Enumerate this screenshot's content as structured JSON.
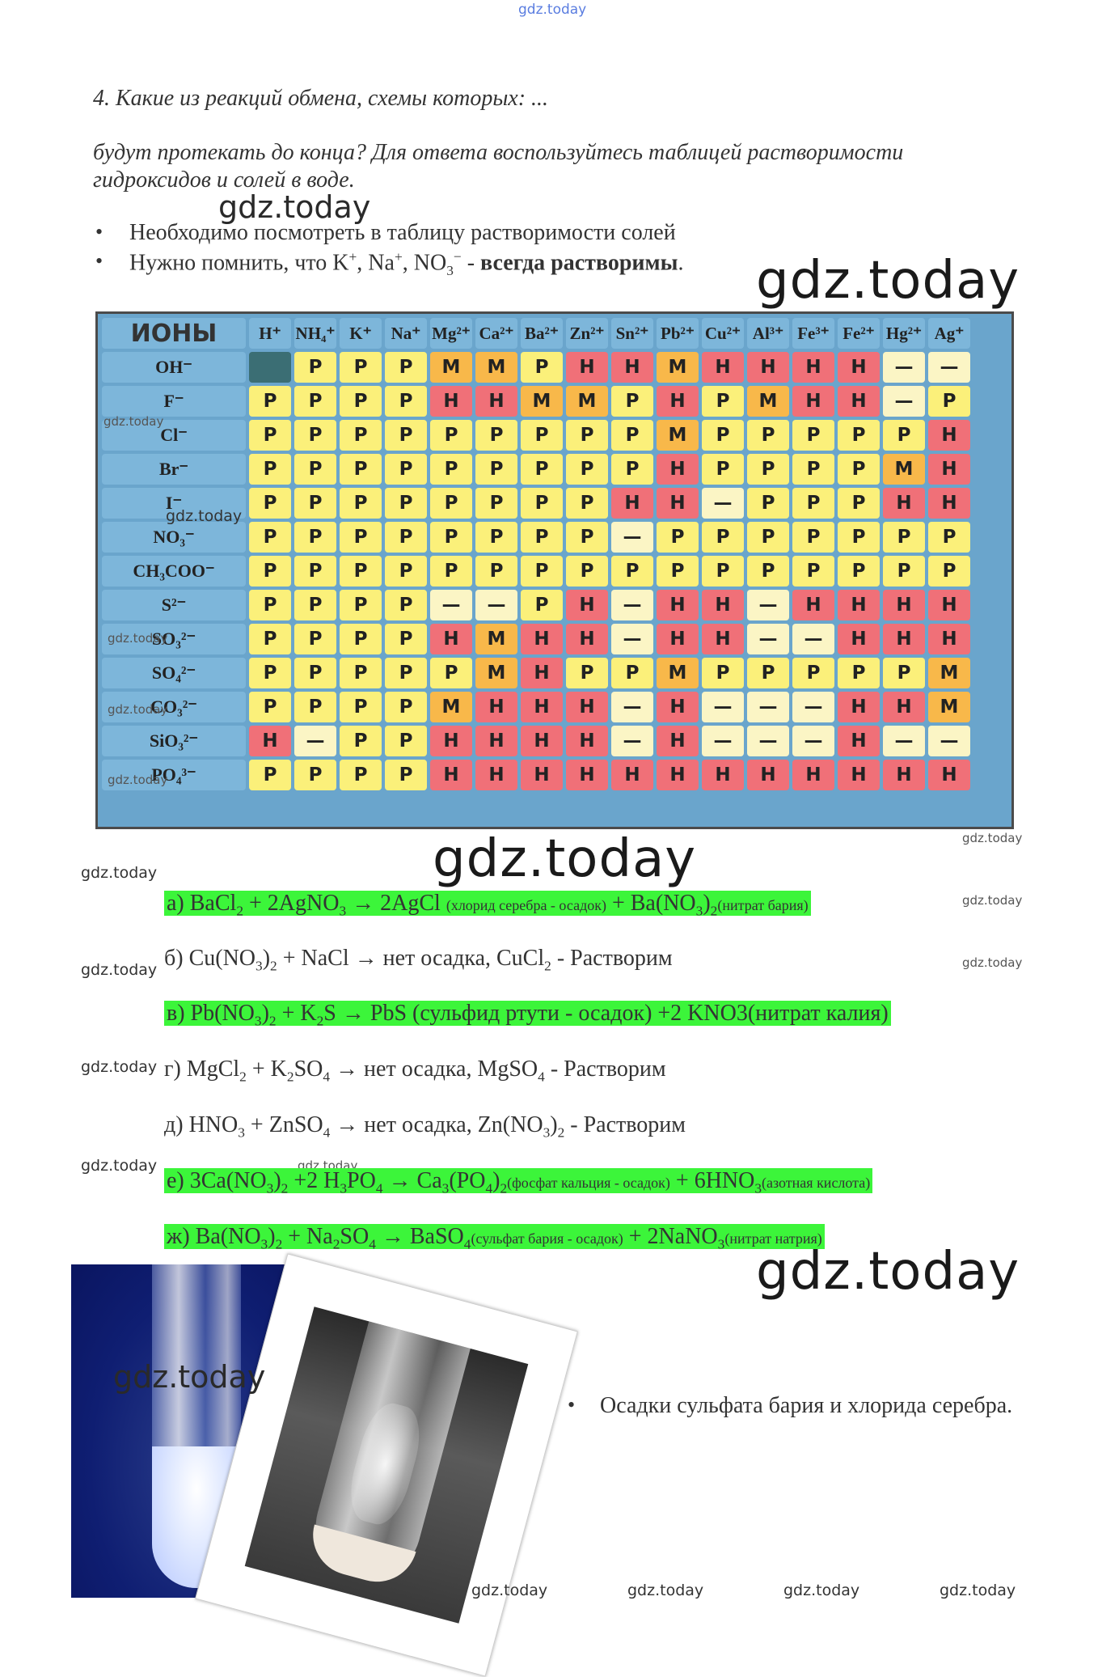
{
  "watermarks": {
    "top": "gdz.today",
    "text": "gdz.today"
  },
  "task": {
    "line1": "4. Какие из реакций обмена, схемы которых: ...",
    "line2": "будут протекать до конца? Для ответа воспользуйтесь таблицей растворимости гидроксидов и солей в воде."
  },
  "bullets": {
    "b1": "Необходимо посмотреть в таблицу растворимости солей",
    "b2_pre": "Нужно помнить, что K",
    "b2_sup1": "+",
    "b2_mid1": ", Na",
    "b2_sup2": "+",
    "b2_mid2": ", NO",
    "b2_sub": "3",
    "b2_sup3": "−",
    "b2_dash": " - ",
    "b2_bold": "всегда растворимы",
    "b2_end": "."
  },
  "table": {
    "corner": "ИОНЫ",
    "cations": [
      "H⁺",
      "NH₄⁺",
      "K⁺",
      "Na⁺",
      "Mg²⁺",
      "Ca²⁺",
      "Ba²⁺",
      "Zn²⁺",
      "Sn²⁺",
      "Pb²⁺",
      "Cu²⁺",
      "Al³⁺",
      "Fe³⁺",
      "Fe²⁺",
      "Hg²⁺",
      "Ag⁺"
    ],
    "rows": [
      {
        "anion": "OH⁻",
        "cells": [
          "",
          "Р",
          "Р",
          "Р",
          "М",
          "М",
          "Р",
          "Н",
          "Н",
          "М",
          "Н",
          "Н",
          "Н",
          "Н",
          "—",
          "—"
        ]
      },
      {
        "anion": "F⁻",
        "cells": [
          "Р",
          "Р",
          "Р",
          "Р",
          "Н",
          "Н",
          "М",
          "М",
          "Р",
          "Н",
          "Р",
          "М",
          "Н",
          "Н",
          "—",
          "Р"
        ]
      },
      {
        "anion": "Cl⁻",
        "cells": [
          "Р",
          "Р",
          "Р",
          "Р",
          "Р",
          "Р",
          "Р",
          "Р",
          "Р",
          "М",
          "Р",
          "Р",
          "Р",
          "Р",
          "Р",
          "Н"
        ]
      },
      {
        "anion": "Br⁻",
        "cells": [
          "Р",
          "Р",
          "Р",
          "Р",
          "Р",
          "Р",
          "Р",
          "Р",
          "Р",
          "Н",
          "Р",
          "Р",
          "Р",
          "Р",
          "М",
          "Н"
        ]
      },
      {
        "anion": "I⁻",
        "cells": [
          "Р",
          "Р",
          "Р",
          "Р",
          "Р",
          "Р",
          "Р",
          "Р",
          "Н",
          "Н",
          "—",
          "Р",
          "Р",
          "Р",
          "Н",
          "Н"
        ]
      },
      {
        "anion": "NO₃⁻",
        "cells": [
          "Р",
          "Р",
          "Р",
          "Р",
          "Р",
          "Р",
          "Р",
          "Р",
          "—",
          "Р",
          "Р",
          "Р",
          "Р",
          "Р",
          "Р",
          "Р"
        ]
      },
      {
        "anion": "CH₃COO⁻",
        "cells": [
          "Р",
          "Р",
          "Р",
          "Р",
          "Р",
          "Р",
          "Р",
          "Р",
          "Р",
          "Р",
          "Р",
          "Р",
          "Р",
          "Р",
          "Р",
          "Р"
        ]
      },
      {
        "anion": "S²⁻",
        "cells": [
          "Р",
          "Р",
          "Р",
          "Р",
          "—",
          "—",
          "Р",
          "Н",
          "—",
          "Н",
          "Н",
          "—",
          "Н",
          "Н",
          "Н",
          "Н"
        ]
      },
      {
        "anion": "SO₃²⁻",
        "cells": [
          "Р",
          "Р",
          "Р",
          "Р",
          "Н",
          "М",
          "Н",
          "Н",
          "—",
          "Н",
          "Н",
          "—",
          "—",
          "Н",
          "Н",
          "Н"
        ]
      },
      {
        "anion": "SO₄²⁻",
        "cells": [
          "Р",
          "Р",
          "Р",
          "Р",
          "Р",
          "М",
          "Н",
          "Р",
          "Р",
          "М",
          "Р",
          "Р",
          "Р",
          "Р",
          "Р",
          "М"
        ]
      },
      {
        "anion": "CO₃²⁻",
        "cells": [
          "Р",
          "Р",
          "Р",
          "Р",
          "М",
          "Н",
          "Н",
          "Н",
          "—",
          "Н",
          "—",
          "—",
          "—",
          "Н",
          "Н",
          "М"
        ]
      },
      {
        "anion": "SiO₃²⁻",
        "cells": [
          "Н",
          "—",
          "Р",
          "Р",
          "Н",
          "Н",
          "Н",
          "Н",
          "—",
          "Н",
          "—",
          "—",
          "—",
          "Н",
          "—",
          "—"
        ]
      },
      {
        "anion": "PO₄³⁻",
        "cells": [
          "Р",
          "Р",
          "Р",
          "Р",
          "Н",
          "Н",
          "Н",
          "Н",
          "Н",
          "Н",
          "Н",
          "Н",
          "Н",
          "Н",
          "Н",
          "Н"
        ]
      }
    ],
    "colors": {
      "soluble": "#fbf07a",
      "insoluble": "#f07078",
      "slightly": "#f8b84a",
      "none": "#fbf5c5"
    }
  },
  "equations": {
    "a1": "а) BaCl",
    "a2": "2",
    "a3": " + 2AgNO",
    "a4": "3",
    "a5": " → 2AgCl ",
    "a6": "(хлорид серебра - осадок)",
    "a7": " + Ba(NO",
    "a8": "3",
    "a9": ")",
    "a10": "2",
    "a11": "(нитрат бария)",
    "b1": "б) Cu(NO",
    "b2": "3",
    "b3": ")",
    "b4": "2",
    "b5": " + NaCl → нет осадка, CuCl",
    "b6": "2",
    "b7": " - Растворим",
    "v1": "в) Pb(NO",
    "v2": "3",
    "v3": ")",
    "v4": "2",
    "v5": " + K",
    "v6": "2",
    "v7": "S → PbS (сульфид ртути - осадок) +2 KNO3(нитрат калия)",
    "g1": "г) MgCl",
    "g2": "2",
    "g3": " + K",
    "g4": "2",
    "g5": "SO",
    "g6": "4",
    "g7": " → нет осадка, MgSO",
    "g8": "4",
    "g9": " - Растворим",
    "d1": "д) HNO",
    "d2": "3",
    "d3": " + ZnSO",
    "d4": "4",
    "d5": " → нет осадка, Zn(NO",
    "d6": "3",
    "d7": ")",
    "d8": "2",
    "d9": " - Растворим",
    "e1": "е) 3Ca(NO",
    "e2": "3",
    "e3": ")",
    "e4": "2",
    "e5": " +2 H",
    "e6": "3",
    "e7": "PO",
    "e8": "4",
    "e9": " → Ca",
    "e10": "3",
    "e11": "(PO",
    "e12": "4",
    "e13": ")",
    "e14": "2",
    "e15": "(фосфат кальция - осадок)",
    "e16": " + 6HNO",
    "e17": "3",
    "e18": "(азотная кислота)",
    "z1": "ж) Ba(NO",
    "z2": "3",
    "z3": ")",
    "z4": "2",
    "z5": " + Na",
    "z6": "2",
    "z7": "SO",
    "z8": "4",
    "z9": " → BaSO",
    "z10": "4",
    "z11": "(сульфат бария - осадок)",
    "z12": " + 2NaNO",
    "z13": "3",
    "z14": "(нитрат натрия)"
  },
  "note": "Осадки сульфата бария и хлорида серебра."
}
